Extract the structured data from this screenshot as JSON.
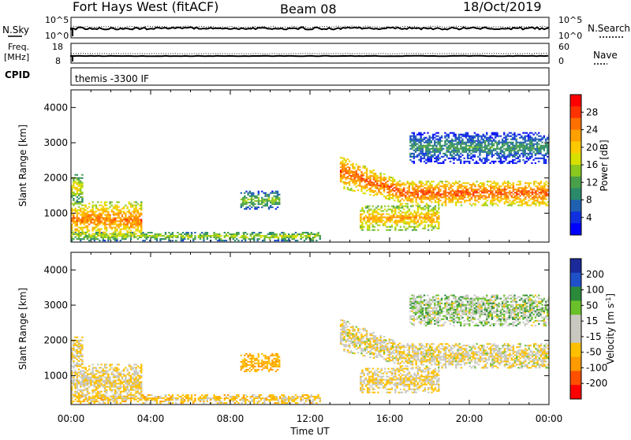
{
  "header": {
    "title": "Fort Hays West (fitACF)",
    "beam": "Beam 08",
    "date": "18/Oct/2019"
  },
  "status_panels": {
    "nsky": {
      "label": "N.Sky",
      "ticks": [
        "10^5",
        "10^0"
      ]
    },
    "nsearch": {
      "label": "N.Search",
      "ticks": [
        "10^5",
        "10^0"
      ]
    },
    "freq": {
      "label_line1": "Freq.",
      "label_line2": "[MHz]",
      "ticks": [
        "18",
        "8"
      ]
    },
    "nave": {
      "label": "Nave",
      "ticks": [
        "60",
        "0"
      ]
    },
    "cpid": {
      "label": "CPID",
      "value": "themis -3300 IF"
    }
  },
  "axes": {
    "ylabel": "Slant Range [km]",
    "yticks": [
      "1000",
      "2000",
      "3000",
      "4000"
    ],
    "xticks": [
      "00:00",
      "04:00",
      "08:00",
      "12:00",
      "16:00",
      "20:00",
      "00:00"
    ],
    "xlabel": "Time UT"
  },
  "power_colorbar": {
    "label": "Power [dB]",
    "ticks": [
      "28",
      "24",
      "20",
      "16",
      "12",
      "8",
      "4"
    ],
    "colors": [
      "#ff0000",
      "#ff3300",
      "#ff7000",
      "#ffa000",
      "#ffc800",
      "#d8e000",
      "#8ac820",
      "#4aa04a",
      "#2a8a6a",
      "#2060b0",
      "#1030e0",
      "#0000ff"
    ]
  },
  "velocity_colorbar": {
    "label_main": "Velocity [m s",
    "label_sup": "-1",
    "label_end": "]",
    "ticks": [
      "200",
      "100",
      "50",
      "15",
      "-15",
      "-50",
      "-100",
      "-200"
    ],
    "colors": [
      "#1a2a9a",
      "#2050c8",
      "#2a8a3a",
      "#6ac02a",
      "#c8c8c0",
      "#c8c8c0",
      "#ffc000",
      "#ff9a00",
      "#ff5000",
      "#ff0000"
    ]
  },
  "chart_data": {
    "type": "heatmap",
    "panels": [
      "Power [dB]",
      "Velocity [m s-1]"
    ],
    "x_range_hours": [
      0,
      24
    ],
    "y_range_km": [
      180,
      4500
    ],
    "echo_regions": [
      {
        "name": "near range strip",
        "t": [
          0.0,
          12.5
        ],
        "r": [
          200,
          450
        ],
        "power_db": 16,
        "velocity": -30
      },
      {
        "name": "early evening patch",
        "t": [
          0.0,
          3.5
        ],
        "r": [
          300,
          1300
        ],
        "power_db": 24,
        "velocity": -15
      },
      {
        "name": "early cluster",
        "t": [
          0.0,
          0.6
        ],
        "r": [
          1300,
          2100
        ],
        "power_db": 18,
        "velocity": -15
      },
      {
        "name": "08-10 UT patch",
        "t": [
          8.5,
          10.5
        ],
        "r": [
          1100,
          1600
        ],
        "power_db": 14,
        "velocity": -50
      },
      {
        "name": "main band descending",
        "t": [
          13.5,
          16.5
        ],
        "r": [
          1300,
          2600
        ],
        "power_db": 26,
        "velocity": -10
      },
      {
        "name": "main band flat",
        "t": [
          16.5,
          24.0
        ],
        "r": [
          1200,
          1900
        ],
        "power_db": 26,
        "velocity": -10
      },
      {
        "name": "lower arc",
        "t": [
          14.5,
          18.5
        ],
        "r": [
          500,
          1200
        ],
        "power_db": 22,
        "velocity": -15
      },
      {
        "name": "upper sporadic",
        "t": [
          17.0,
          24.0
        ],
        "r": [
          2400,
          3300
        ],
        "power_db": 10,
        "velocity": 10
      }
    ]
  }
}
